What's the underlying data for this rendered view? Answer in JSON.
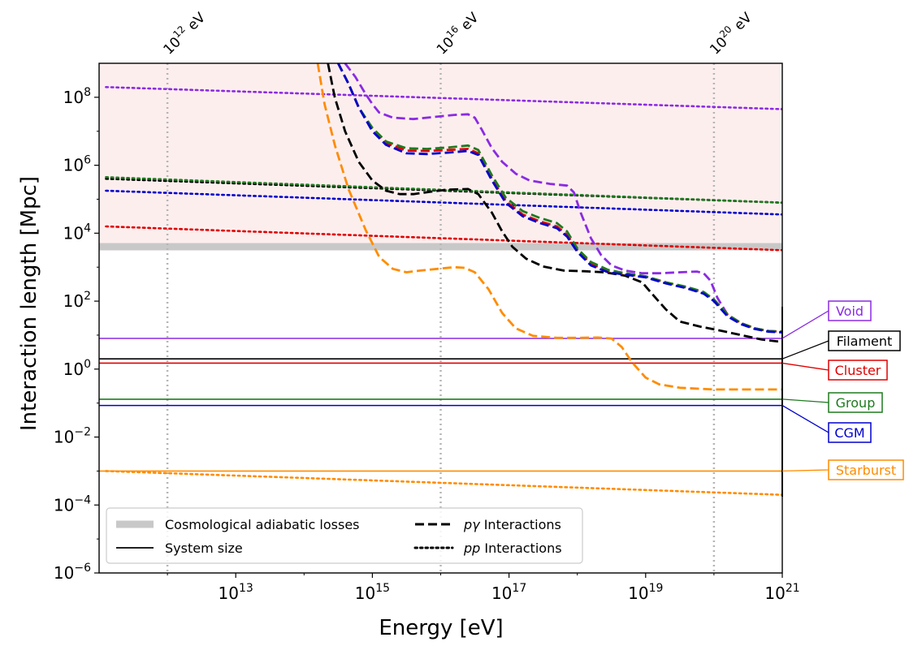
{
  "chart_data": {
    "type": "line",
    "xlabel": "Energy [eV]",
    "ylabel": "Interaction length [Mpc]",
    "x_scale": "log",
    "y_scale": "log",
    "xlim": [
      100000000000.0,
      1e+21
    ],
    "ylim": [
      1e-06,
      1000000000.0
    ],
    "x_ticks": [
      {
        "value": 10000000000000.0,
        "base": "10",
        "exp": "13"
      },
      {
        "value": 1000000000000000.0,
        "base": "10",
        "exp": "15"
      },
      {
        "value": 1e+17,
        "base": "10",
        "exp": "17"
      },
      {
        "value": 1e+19,
        "base": "10",
        "exp": "19"
      },
      {
        "value": 1e+21,
        "base": "10",
        "exp": "21"
      }
    ],
    "y_ticks": [
      {
        "value": 1e-06,
        "base": "10",
        "exp": "−6"
      },
      {
        "value": 0.0001,
        "base": "10",
        "exp": "−4"
      },
      {
        "value": 0.01,
        "base": "10",
        "exp": "−2"
      },
      {
        "value": 1,
        "base": "10",
        "exp": "0"
      },
      {
        "value": 100.0,
        "base": "10",
        "exp": "2"
      },
      {
        "value": 10000.0,
        "base": "10",
        "exp": "4"
      },
      {
        "value": 1000000.0,
        "base": "10",
        "exp": "6"
      },
      {
        "value": 100000000.0,
        "base": "10",
        "exp": "8"
      }
    ],
    "top_markers": [
      {
        "value": 1000000000000.0,
        "base": "10",
        "exp": "12",
        "unit": " eV"
      },
      {
        "value": 1e+16,
        "base": "10",
        "exp": "16",
        "unit": " eV"
      },
      {
        "value": 1e+20,
        "base": "10",
        "exp": "20",
        "unit": " eV"
      }
    ],
    "shaded_region": {
      "y_from": 4000,
      "y_to": 1000000000.0,
      "color": "#fdeeee"
    },
    "adiabatic_band": {
      "y": 4000,
      "color": "#c8c8c8"
    },
    "colors": {
      "Void": "#8a2be2",
      "Filament": "#000000",
      "Cluster": "#e00000",
      "Group": "#1f7a1f",
      "CGM": "#0000cc",
      "Starburst": "#ff8c00"
    },
    "systems": [
      {
        "name": "Void",
        "system_size": 8.0,
        "label": "Void",
        "pgamma": [
          [
            14.6,
            9.0
          ],
          [
            14.75,
            8.6
          ],
          [
            14.9,
            8.1
          ],
          [
            15.0,
            7.8
          ],
          [
            15.1,
            7.55
          ],
          [
            15.3,
            7.4
          ],
          [
            15.6,
            7.36
          ],
          [
            15.9,
            7.42
          ],
          [
            16.2,
            7.48
          ],
          [
            16.4,
            7.5
          ],
          [
            16.5,
            7.4
          ],
          [
            16.6,
            7.05
          ],
          [
            16.75,
            6.5
          ],
          [
            16.9,
            6.1
          ],
          [
            17.1,
            5.75
          ],
          [
            17.3,
            5.55
          ],
          [
            17.6,
            5.45
          ],
          [
            17.85,
            5.4
          ],
          [
            17.95,
            5.2
          ],
          [
            18.05,
            4.6
          ],
          [
            18.2,
            3.85
          ],
          [
            18.35,
            3.35
          ],
          [
            18.5,
            3.05
          ],
          [
            18.7,
            2.9
          ],
          [
            18.95,
            2.82
          ],
          [
            19.2,
            2.82
          ],
          [
            19.5,
            2.85
          ],
          [
            19.75,
            2.87
          ],
          [
            19.85,
            2.82
          ],
          [
            19.95,
            2.6
          ],
          [
            20.05,
            2.1
          ],
          [
            20.2,
            1.6
          ],
          [
            20.4,
            1.35
          ],
          [
            20.6,
            1.2
          ],
          [
            20.8,
            1.12
          ],
          [
            21.0,
            1.1
          ]
        ],
        "pp": [
          [
            11.1,
            8.3
          ],
          [
            21.0,
            7.65
          ]
        ]
      },
      {
        "name": "Filament",
        "system_size": 2.0,
        "label": "Filament",
        "pgamma": [
          [
            14.35,
            9.0
          ],
          [
            14.45,
            8.0
          ],
          [
            14.6,
            7.0
          ],
          [
            14.8,
            6.1
          ],
          [
            15.0,
            5.55
          ],
          [
            15.2,
            5.25
          ],
          [
            15.4,
            5.15
          ],
          [
            15.6,
            5.15
          ],
          [
            15.85,
            5.22
          ],
          [
            16.1,
            5.28
          ],
          [
            16.4,
            5.3
          ],
          [
            16.55,
            5.15
          ],
          [
            16.75,
            4.6
          ],
          [
            16.9,
            4.05
          ],
          [
            17.05,
            3.6
          ],
          [
            17.25,
            3.25
          ],
          [
            17.5,
            3.02
          ],
          [
            17.8,
            2.9
          ],
          [
            18.1,
            2.88
          ],
          [
            18.4,
            2.85
          ],
          [
            18.7,
            2.75
          ],
          [
            18.95,
            2.55
          ],
          [
            19.1,
            2.2
          ],
          [
            19.3,
            1.75
          ],
          [
            19.5,
            1.4
          ],
          [
            19.8,
            1.25
          ],
          [
            20.1,
            1.13
          ],
          [
            20.4,
            1.0
          ],
          [
            20.7,
            0.87
          ],
          [
            21.0,
            0.8
          ]
        ],
        "pp": [
          [
            11.1,
            5.6
          ],
          [
            21.0,
            4.9
          ]
        ]
      },
      {
        "name": "Cluster",
        "system_size": 1.5,
        "label": "Cluster",
        "pgamma": [
          [
            14.5,
            9.0
          ],
          [
            14.65,
            8.4
          ],
          [
            14.8,
            7.7
          ],
          [
            15.0,
            7.05
          ],
          [
            15.2,
            6.65
          ],
          [
            15.5,
            6.43
          ],
          [
            15.8,
            6.42
          ],
          [
            16.1,
            6.45
          ],
          [
            16.4,
            6.48
          ],
          [
            16.55,
            6.35
          ],
          [
            16.75,
            5.6
          ],
          [
            16.95,
            4.95
          ],
          [
            17.2,
            4.55
          ],
          [
            17.45,
            4.35
          ],
          [
            17.7,
            4.2
          ],
          [
            17.85,
            3.95
          ],
          [
            18.0,
            3.5
          ],
          [
            18.2,
            3.1
          ],
          [
            18.45,
            2.88
          ],
          [
            18.7,
            2.8
          ],
          [
            19.0,
            2.72
          ],
          [
            19.3,
            2.55
          ],
          [
            19.6,
            2.4
          ],
          [
            19.85,
            2.25
          ],
          [
            20.0,
            2.05
          ],
          [
            20.2,
            1.6
          ],
          [
            20.4,
            1.35
          ],
          [
            20.6,
            1.2
          ],
          [
            20.8,
            1.12
          ],
          [
            21.0,
            1.1
          ]
        ],
        "pp": [
          [
            11.1,
            4.2
          ],
          [
            21.0,
            3.5
          ]
        ]
      },
      {
        "name": "Group",
        "system_size": 0.13,
        "label": "Group",
        "pgamma": [
          [
            14.5,
            9.0
          ],
          [
            14.65,
            8.4
          ],
          [
            14.8,
            7.7
          ],
          [
            15.0,
            7.1
          ],
          [
            15.2,
            6.7
          ],
          [
            15.5,
            6.5
          ],
          [
            15.8,
            6.48
          ],
          [
            16.1,
            6.52
          ],
          [
            16.4,
            6.58
          ],
          [
            16.55,
            6.45
          ],
          [
            16.75,
            5.7
          ],
          [
            16.95,
            5.05
          ],
          [
            17.2,
            4.65
          ],
          [
            17.45,
            4.45
          ],
          [
            17.7,
            4.3
          ],
          [
            17.85,
            4.05
          ],
          [
            18.0,
            3.55
          ],
          [
            18.2,
            3.15
          ],
          [
            18.45,
            2.92
          ],
          [
            18.7,
            2.82
          ],
          [
            19.0,
            2.73
          ],
          [
            19.3,
            2.55
          ],
          [
            19.6,
            2.42
          ],
          [
            19.85,
            2.27
          ],
          [
            20.0,
            2.05
          ],
          [
            20.2,
            1.6
          ],
          [
            20.4,
            1.35
          ],
          [
            20.6,
            1.2
          ],
          [
            20.8,
            1.12
          ],
          [
            21.0,
            1.1
          ]
        ],
        "pp": [
          [
            11.1,
            5.65
          ],
          [
            21.0,
            4.9
          ]
        ]
      },
      {
        "name": "CGM",
        "system_size": 0.085,
        "label": "CGM",
        "pgamma": [
          [
            14.5,
            9.0
          ],
          [
            14.65,
            8.4
          ],
          [
            14.8,
            7.7
          ],
          [
            15.0,
            7.0
          ],
          [
            15.2,
            6.6
          ],
          [
            15.5,
            6.35
          ],
          [
            15.8,
            6.33
          ],
          [
            16.1,
            6.37
          ],
          [
            16.4,
            6.42
          ],
          [
            16.55,
            6.3
          ],
          [
            16.75,
            5.55
          ],
          [
            16.95,
            4.9
          ],
          [
            17.2,
            4.5
          ],
          [
            17.45,
            4.3
          ],
          [
            17.7,
            4.15
          ],
          [
            17.85,
            3.9
          ],
          [
            18.0,
            3.45
          ],
          [
            18.2,
            3.05
          ],
          [
            18.45,
            2.85
          ],
          [
            18.7,
            2.78
          ],
          [
            19.0,
            2.7
          ],
          [
            19.3,
            2.52
          ],
          [
            19.6,
            2.38
          ],
          [
            19.85,
            2.22
          ],
          [
            20.0,
            2.0
          ],
          [
            20.2,
            1.55
          ],
          [
            20.4,
            1.32
          ],
          [
            20.6,
            1.18
          ],
          [
            20.8,
            1.1
          ],
          [
            21.0,
            1.08
          ]
        ],
        "pp": [
          [
            11.1,
            5.25
          ],
          [
            21.0,
            4.55
          ]
        ]
      },
      {
        "name": "Starburst",
        "system_size": 0.001,
        "label": "Starburst",
        "pgamma": [
          [
            14.2,
            9.0
          ],
          [
            14.3,
            7.8
          ],
          [
            14.45,
            6.6
          ],
          [
            14.65,
            5.3
          ],
          [
            14.9,
            4.1
          ],
          [
            15.1,
            3.3
          ],
          [
            15.3,
            2.95
          ],
          [
            15.5,
            2.85
          ],
          [
            15.7,
            2.9
          ],
          [
            15.95,
            2.95
          ],
          [
            16.2,
            3.0
          ],
          [
            16.35,
            2.98
          ],
          [
            16.5,
            2.85
          ],
          [
            16.7,
            2.35
          ],
          [
            16.9,
            1.65
          ],
          [
            17.1,
            1.2
          ],
          [
            17.35,
            0.98
          ],
          [
            17.7,
            0.92
          ],
          [
            18.0,
            0.92
          ],
          [
            18.3,
            0.93
          ],
          [
            18.5,
            0.9
          ],
          [
            18.65,
            0.65
          ],
          [
            18.8,
            0.2
          ],
          [
            19.0,
            -0.25
          ],
          [
            19.2,
            -0.45
          ],
          [
            19.5,
            -0.55
          ],
          [
            20.0,
            -0.6
          ],
          [
            20.5,
            -0.6
          ],
          [
            21.0,
            -0.6
          ]
        ],
        "pp": [
          [
            11.1,
            -3.0
          ],
          [
            21.0,
            -3.7
          ]
        ]
      }
    ],
    "legend": {
      "placement": "lower-left",
      "entries": [
        {
          "label": "Cosmological adiabatic losses",
          "style": "band"
        },
        {
          "label": "System size",
          "style": "solid"
        },
        {
          "label": " Interactions",
          "prefix_italic": "p",
          "prefix_symbol": "γ",
          "style": "dashed"
        },
        {
          "label": " Interactions",
          "prefix_italic": "pp",
          "prefix_symbol": "",
          "style": "dotted"
        }
      ]
    }
  }
}
